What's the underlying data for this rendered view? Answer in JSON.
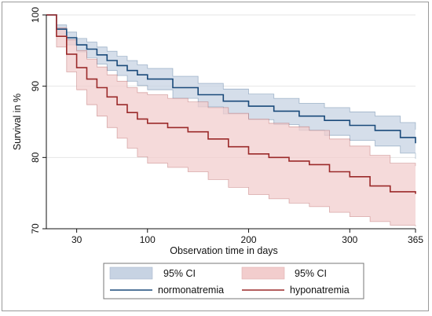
{
  "chart_data": {
    "type": "line",
    "title": "",
    "xlabel": "Observation time in days",
    "ylabel": "Survival in %",
    "xlim": [
      0,
      365
    ],
    "ylim": [
      70,
      100
    ],
    "xticks": [
      30,
      100,
      200,
      300,
      365
    ],
    "yticks": [
      70,
      80,
      90,
      100
    ],
    "grid": "horizontal",
    "legend_position": "bottom",
    "legend": {
      "ci_label_1": "95% CI",
      "ci_label_2": "95% CI",
      "series_label_1": "normonatremia",
      "series_label_2": "hyponatremia"
    },
    "series": [
      {
        "name": "normonatremia",
        "color": "#1a4a7a",
        "ci_color": "#c7d3e3",
        "x": [
          0,
          10,
          20,
          30,
          40,
          50,
          60,
          70,
          80,
          90,
          100,
          125,
          150,
          175,
          200,
          225,
          250,
          275,
          300,
          325,
          350,
          365
        ],
        "y": [
          100,
          98.0,
          96.8,
          95.8,
          95.2,
          94.4,
          93.6,
          92.9,
          92.2,
          91.6,
          91.0,
          89.8,
          88.8,
          87.9,
          87.2,
          86.5,
          85.8,
          85.2,
          84.5,
          83.8,
          82.8,
          82.0
        ],
        "lower": [
          100,
          97.3,
          95.8,
          94.8,
          94.0,
          93.1,
          92.2,
          91.5,
          90.7,
          90.1,
          89.5,
          88.3,
          87.1,
          86.1,
          85.3,
          84.6,
          83.8,
          83.1,
          82.4,
          81.6,
          80.6,
          79.8
        ],
        "upper": [
          100,
          98.6,
          97.6,
          96.7,
          96.2,
          95.5,
          94.9,
          94.2,
          93.6,
          93.0,
          92.5,
          91.4,
          90.4,
          89.6,
          88.9,
          88.3,
          87.6,
          87.0,
          86.4,
          85.8,
          84.9,
          83.9
        ]
      },
      {
        "name": "hyponatremia",
        "color": "#9b2a2a",
        "ci_color": "#f2cdcd",
        "x": [
          0,
          10,
          20,
          30,
          40,
          50,
          60,
          70,
          80,
          90,
          100,
          120,
          140,
          160,
          180,
          200,
          220,
          240,
          260,
          280,
          300,
          320,
          340,
          365
        ],
        "y": [
          100,
          97.0,
          94.5,
          92.6,
          91.0,
          89.8,
          88.5,
          87.4,
          86.3,
          85.4,
          84.8,
          84.2,
          83.6,
          82.6,
          81.5,
          80.5,
          80.0,
          79.5,
          79.0,
          78.0,
          77.3,
          76.0,
          75.2,
          74.9
        ],
        "lower": [
          100,
          95.5,
          92.0,
          89.5,
          87.4,
          85.8,
          84.2,
          82.7,
          81.3,
          80.1,
          79.2,
          78.6,
          78.0,
          76.9,
          75.8,
          74.8,
          74.2,
          73.6,
          73.1,
          72.3,
          71.7,
          71.0,
          70.5,
          70.3
        ],
        "upper": [
          100,
          98.2,
          96.5,
          95.0,
          93.8,
          92.7,
          91.6,
          90.7,
          89.8,
          89.1,
          88.8,
          88.3,
          87.8,
          87.0,
          86.2,
          85.4,
          84.8,
          84.3,
          83.8,
          82.6,
          81.6,
          80.3,
          79.2,
          78.8
        ]
      }
    ]
  }
}
